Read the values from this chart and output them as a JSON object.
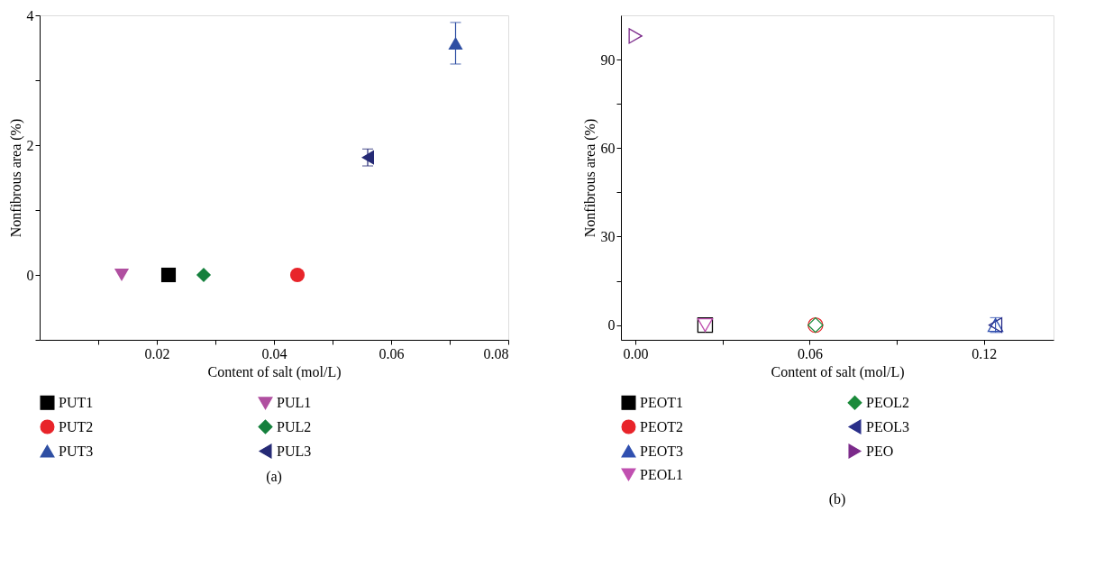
{
  "chart_data": [
    {
      "type": "scatter",
      "xlabel": "Content of salt (mol/L)",
      "ylabel": "Nonfibrous area (%)",
      "annotations": [
        "(a)"
      ],
      "xlim": [
        0,
        0.08
      ],
      "ylim": [
        -1,
        4
      ],
      "xticks": [
        {
          "value": 0.01,
          "label": null
        },
        0.02,
        {
          "value": 0.03,
          "label": null
        },
        0.04,
        {
          "value": 0.05,
          "label": null
        },
        0.06,
        {
          "value": 0.07,
          "label": null
        },
        0.08
      ],
      "yticks": [
        {
          "value": -1,
          "label": null
        },
        0,
        {
          "value": 1,
          "label": null
        },
        2,
        {
          "value": 3,
          "label": null
        },
        4
      ],
      "grid": false,
      "legend": "bottom",
      "series": [
        {
          "name": "PUT1",
          "color": "#000000",
          "marker": "square",
          "x": [
            0.022
          ],
          "values": [
            0
          ]
        },
        {
          "name": "PUT2",
          "color": "#e8242a",
          "marker": "circle",
          "x": [
            0.044
          ],
          "values": [
            0
          ]
        },
        {
          "name": "PUT3",
          "color": "#2f4fa3",
          "marker": "triangle-up",
          "x": [
            0.071
          ],
          "values": [
            3.57
          ],
          "errors": [
            0.32
          ]
        },
        {
          "name": "PUL1",
          "color": "#b04fa0",
          "marker": "triangle-down",
          "x": [
            0.014
          ],
          "values": [
            0
          ]
        },
        {
          "name": "PUL2",
          "color": "#15803d",
          "marker": "diamond",
          "x": [
            0.028
          ],
          "values": [
            0
          ]
        },
        {
          "name": "PUL3",
          "color": "#252a75",
          "marker": "triangle-left",
          "x": [
            0.056
          ],
          "values": [
            1.81
          ],
          "errors": [
            0.13
          ]
        }
      ]
    },
    {
      "type": "scatter",
      "xlabel": "Content of salt (mol/L)",
      "ylabel": "Nonfibrous area (%)",
      "annotations": [
        "(b)"
      ],
      "xlim": [
        -0.005,
        0.144
      ],
      "ylim": [
        -5,
        105
      ],
      "xticks": [
        {
          "value": 0,
          "label": "0.00"
        },
        {
          "value": 0.03,
          "label": null
        },
        0.06,
        {
          "value": 0.09,
          "label": null
        },
        0.12
      ],
      "yticks": [
        0,
        {
          "value": 15,
          "label": null
        },
        30,
        {
          "value": 45,
          "label": null
        },
        60,
        {
          "value": 75,
          "label": null
        },
        90
      ],
      "grid": false,
      "legend": "bottom",
      "series": [
        {
          "name": "PEOT1",
          "color": "#000000",
          "marker": "square-open",
          "x": [
            0.024
          ],
          "values": [
            0
          ]
        },
        {
          "name": "PEOT2",
          "color": "#e8242a",
          "marker": "circle-open",
          "x": [
            0.062
          ],
          "values": [
            0
          ]
        },
        {
          "name": "PEOT3",
          "color": "#3050b0",
          "marker": "triangle-up-open",
          "x": [
            0.124
          ],
          "values": [
            0
          ],
          "errors": [
            2.5
          ]
        },
        {
          "name": "PEOL1",
          "color": "#c050b0",
          "marker": "triangle-down-open",
          "x": [
            0.024
          ],
          "values": [
            0
          ]
        },
        {
          "name": "PEOL2",
          "color": "#1a8a3a",
          "marker": "diamond-open",
          "x": [
            0.062
          ],
          "values": [
            0
          ]
        },
        {
          "name": "PEOL3",
          "color": "#2a2f8a",
          "marker": "triangle-left-open",
          "x": [
            0.124
          ],
          "values": [
            0
          ]
        },
        {
          "name": "PEO",
          "color": "#7b2a8a",
          "marker": "triangle-right-open",
          "x": [
            0
          ],
          "values": [
            98
          ]
        }
      ]
    }
  ]
}
